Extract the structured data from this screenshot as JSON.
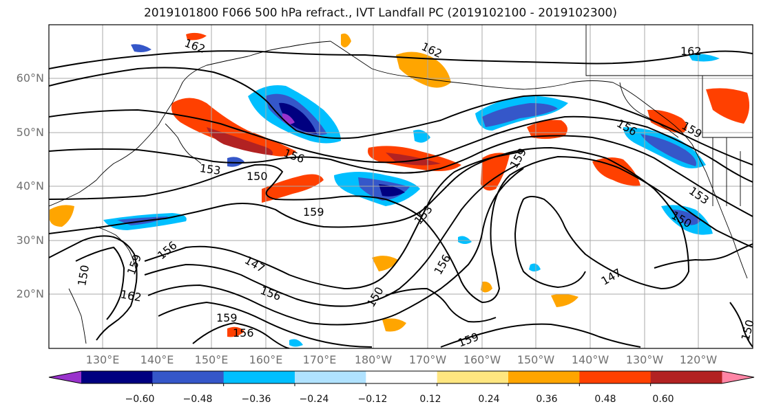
{
  "title": "2019101800 F066 500 hPa refract., IVT Landfall PC (2019102100 - 2019102300)",
  "lat_labels": [
    "60°N",
    "50°N",
    "40°N",
    "30°N",
    "20°N"
  ],
  "lon_labels": [
    "130°E",
    "140°E",
    "150°E",
    "160°E",
    "170°E",
    "180°W",
    "170°W",
    "160°W",
    "150°W",
    "140°W",
    "130°W",
    "120°W"
  ],
  "contour_labels": [
    "162",
    "162",
    "162",
    "159",
    "159",
    "159",
    "159",
    "159",
    "156",
    "156",
    "156",
    "156",
    "156",
    "156",
    "153",
    "153",
    "153",
    "150",
    "150",
    "150",
    "150",
    "150",
    "147",
    "147",
    "162",
    "159"
  ],
  "colorbar": {
    "tick_labels": [
      "−0.60",
      "−0.48",
      "−0.36",
      "−0.24",
      "−0.12",
      "0.12",
      "0.24",
      "0.36",
      "0.48",
      "0.60"
    ],
    "colors": [
      "#9932cc",
      "#000080",
      "#3557c9",
      "#00bfff",
      "#b0e2ff",
      "#ffffff",
      "#ffe680",
      "#ffa500",
      "#ff4000",
      "#b22222",
      "#ff85a5"
    ]
  }
}
